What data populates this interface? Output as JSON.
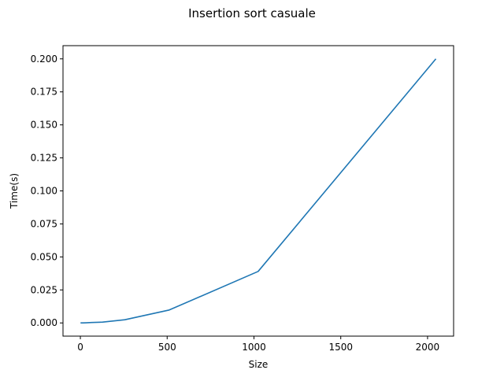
{
  "chart_data": {
    "type": "line",
    "title": "Insertion sort casuale",
    "xlabel": "Size",
    "ylabel": "Time(s)",
    "xlim": [
      -100,
      2150
    ],
    "ylim": [
      -0.01,
      0.21
    ],
    "grid": false,
    "x_ticks": [
      0,
      500,
      1000,
      1500,
      2000
    ],
    "x_tick_labels": [
      "0",
      "500",
      "1000",
      "1500",
      "2000"
    ],
    "y_ticks": [
      0.0,
      0.025,
      0.05,
      0.075,
      0.1,
      0.125,
      0.15,
      0.175,
      0.2
    ],
    "y_tick_labels": [
      "0.000",
      "0.025",
      "0.050",
      "0.075",
      "0.100",
      "0.125",
      "0.150",
      "0.175",
      "0.200"
    ],
    "series": [
      {
        "color": "#1f77b4",
        "x": [
          1,
          2,
          4,
          8,
          16,
          32,
          64,
          128,
          256,
          512,
          1024,
          2048
        ],
        "y": [
          0.0,
          0.0,
          0.0,
          0.0,
          0.0,
          0.0001,
          0.0003,
          0.0006,
          0.0024,
          0.0098,
          0.039,
          0.2
        ]
      }
    ]
  }
}
